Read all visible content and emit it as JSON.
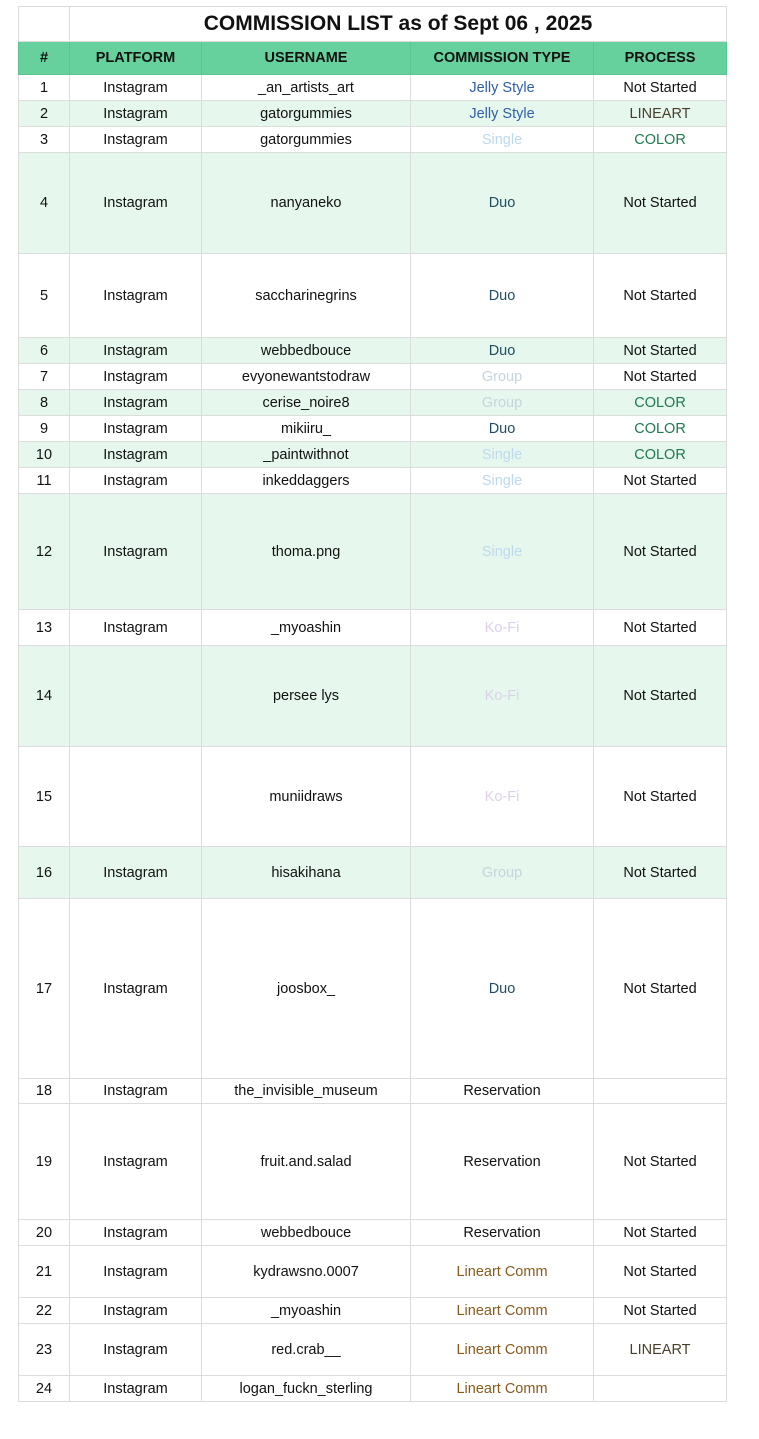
{
  "title": "COMMISSION LIST as of Sept 06 , 2025",
  "columns": [
    "#",
    "PLATFORM",
    "USERNAME",
    "COMMISSION TYPE",
    "PROCESS"
  ],
  "type_colors": {
    "Jelly Style": "#2e5fa8",
    "Single": "#bcd9ee",
    "Duo": "#1f4e62",
    "Group": "#c5d5de",
    "Ko-Fi": "#ddd0ea",
    "Reservation": "#111111",
    "Lineart Comm": "#8a5a1a"
  },
  "process_colors": {
    "Not Started": "#111111",
    "LINEART": "#4a3f2a",
    "COLOR": "#1e7a4f"
  },
  "header_color": "#66d19c",
  "stripe_color": "#e6f7ee",
  "rows": [
    {
      "n": "1",
      "platform": "Instagram",
      "username": "_an_artists_art",
      "type": "Jelly Style",
      "process": "Not Started"
    },
    {
      "n": "2",
      "platform": "Instagram",
      "username": "gatorgummies",
      "type": "Jelly Style",
      "process": "LINEART"
    },
    {
      "n": "3",
      "platform": "Instagram",
      "username": "gatorgummies",
      "type": "Single",
      "process": "COLOR"
    },
    {
      "n": "4",
      "platform": "Instagram",
      "username": "nanyaneko",
      "type": "Duo",
      "process": "Not Started"
    },
    {
      "n": "5",
      "platform": "Instagram",
      "username": "saccharinegrins",
      "type": "Duo",
      "process": "Not Started"
    },
    {
      "n": "6",
      "platform": "Instagram",
      "username": "webbedbouce",
      "type": "Duo",
      "process": "Not Started"
    },
    {
      "n": "7",
      "platform": "Instagram",
      "username": "evyonewantstodraw",
      "type": "Group",
      "process": "Not Started"
    },
    {
      "n": "8",
      "platform": "Instagram",
      "username": "cerise_noire8",
      "type": "Group",
      "process": "COLOR"
    },
    {
      "n": "9",
      "platform": "Instagram",
      "username": "mikiiru_",
      "type": "Duo",
      "process": "COLOR"
    },
    {
      "n": "10",
      "platform": "Instagram",
      "username": "_paintwithnot",
      "type": "Single",
      "process": "COLOR"
    },
    {
      "n": "11",
      "platform": "Instagram",
      "username": "inkeddaggers",
      "type": "Single",
      "process": "Not Started"
    },
    {
      "n": "12",
      "platform": "Instagram",
      "username": "thoma.png",
      "type": "Single",
      "process": "Not Started"
    },
    {
      "n": "13",
      "platform": "Instagram",
      "username": "_myoashin",
      "type": "Ko-Fi",
      "process": "Not Started"
    },
    {
      "n": "14",
      "platform": "",
      "username": "persee lys",
      "type": "Ko-Fi",
      "process": "Not Started"
    },
    {
      "n": "15",
      "platform": "",
      "username": "muniidraws",
      "type": "Ko-Fi",
      "process": "Not Started"
    },
    {
      "n": "16",
      "platform": "Instagram",
      "username": "hisakihana",
      "type": "Group",
      "process": "Not Started"
    },
    {
      "n": "17",
      "platform": "Instagram",
      "username": "joosbox_",
      "type": "Duo",
      "process": "Not Started"
    },
    {
      "n": "18",
      "platform": "Instagram",
      "username": "the_invisible_museum",
      "type": "Reservation",
      "process": ""
    },
    {
      "n": "19",
      "platform": "Instagram",
      "username": "fruit.and.salad",
      "type": "Reservation",
      "process": "Not Started"
    },
    {
      "n": "20",
      "platform": "Instagram",
      "username": "webbedbouce",
      "type": "Reservation",
      "process": "Not Started"
    },
    {
      "n": "21",
      "platform": "Instagram",
      "username": "kydrawsno.0007",
      "type": "Lineart Comm",
      "process": "Not Started"
    },
    {
      "n": "22",
      "platform": "Instagram",
      "username": "_myoashin",
      "type": "Lineart Comm",
      "process": "Not Started"
    },
    {
      "n": "23",
      "platform": "Instagram",
      "username": "red.crab__",
      "type": "Lineart Comm",
      "process": "LINEART"
    },
    {
      "n": "24",
      "platform": "Instagram",
      "username": "logan_fuckn_sterling",
      "type": "Lineart Comm",
      "process": ""
    }
  ]
}
